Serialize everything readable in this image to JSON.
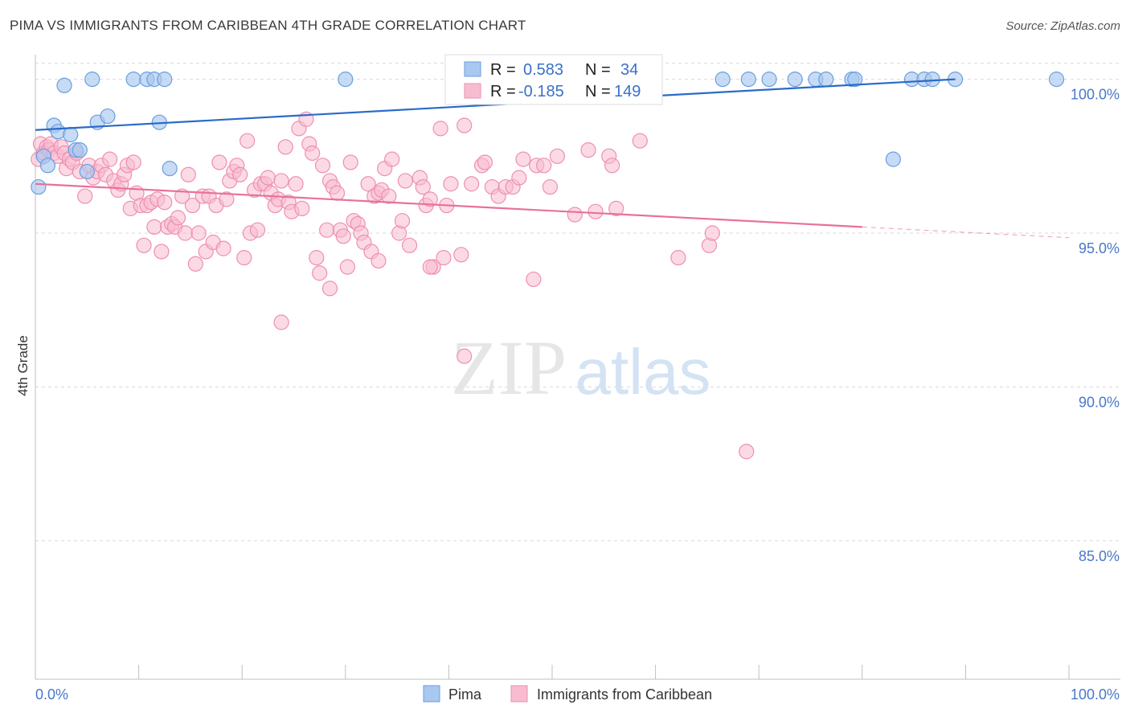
{
  "title": "PIMA VS IMMIGRANTS FROM CARIBBEAN 4TH GRADE CORRELATION CHART",
  "source": "Source: ZipAtlas.com",
  "watermark": {
    "zip": "ZIP",
    "atlas": "atlas"
  },
  "colors": {
    "pima_fill": "#a9c8f0",
    "pima_stroke": "#6a9ee0",
    "pima_line": "#2a6bc8",
    "carib_fill": "#f7bcd0",
    "carib_stroke": "#ee8fb0",
    "carib_line": "#e8709a",
    "grid": "#d9d9d9",
    "tick_text": "#4a78c8"
  },
  "stats_box": {
    "rows": [
      {
        "r_label": "R =",
        "r_value": "0.583",
        "n_label": "N =",
        "n_value": "34"
      },
      {
        "r_label": "R =",
        "r_value": "-0.185",
        "n_label": "N =",
        "n_value": "149"
      }
    ]
  },
  "chart_data": {
    "type": "scatter",
    "title": "PIMA VS IMMIGRANTS FROM CARIBBEAN 4TH GRADE CORRELATION CHART",
    "xlabel": "",
    "ylabel": "4th Grade",
    "xlim": [
      0,
      100
    ],
    "ylim": [
      80.5,
      100.8
    ],
    "x_tick_labels": [
      "0.0%",
      "100.0%"
    ],
    "y_ticks": [
      85,
      90,
      95,
      100
    ],
    "y_tick_labels": [
      "85.0%",
      "90.0%",
      "95.0%",
      "100.0%"
    ],
    "grid": "horizontal dashed",
    "legend_position": "bottom-center",
    "series": [
      {
        "name": "Pima",
        "trend": {
          "x": [
            0,
            89
          ],
          "y": [
            98.35,
            100.0
          ]
        },
        "points": [
          [
            0.3,
            96.5
          ],
          [
            0.8,
            97.5
          ],
          [
            1.2,
            97.2
          ],
          [
            1.8,
            98.5
          ],
          [
            2.2,
            98.3
          ],
          [
            2.8,
            99.8
          ],
          [
            3.4,
            98.2
          ],
          [
            3.9,
            97.7
          ],
          [
            4.3,
            97.7
          ],
          [
            5.0,
            97.0
          ],
          [
            5.5,
            100.0
          ],
          [
            6.0,
            98.6
          ],
          [
            7.0,
            98.8
          ],
          [
            9.5,
            100.0
          ],
          [
            10.8,
            100.0
          ],
          [
            11.5,
            100.0
          ],
          [
            12.0,
            98.6
          ],
          [
            12.5,
            100.0
          ],
          [
            13.0,
            97.1
          ],
          [
            30.0,
            100.0
          ],
          [
            66.5,
            100.0
          ],
          [
            69.0,
            100.0
          ],
          [
            71.0,
            100.0
          ],
          [
            73.5,
            100.0
          ],
          [
            75.5,
            100.0
          ],
          [
            76.5,
            100.0
          ],
          [
            79.0,
            100.0
          ],
          [
            79.3,
            100.0
          ],
          [
            83.0,
            97.4
          ],
          [
            84.8,
            100.0
          ],
          [
            86.0,
            100.0
          ],
          [
            86.8,
            100.0
          ],
          [
            89.0,
            100.0
          ],
          [
            98.8,
            100.0
          ]
        ]
      },
      {
        "name": "Immigrants from Caribbean",
        "trend": {
          "x": [
            0,
            80
          ],
          "y": [
            96.6,
            95.2
          ]
        },
        "trend_dashed": {
          "x": [
            80,
            100
          ],
          "y": [
            95.2,
            94.85
          ]
        },
        "points": [
          [
            0.3,
            97.4
          ],
          [
            0.5,
            97.9
          ],
          [
            0.8,
            97.6
          ],
          [
            1.1,
            97.8
          ],
          [
            1.3,
            97.7
          ],
          [
            1.5,
            97.9
          ],
          [
            1.8,
            97.6
          ],
          [
            2.2,
            97.5
          ],
          [
            2.5,
            97.8
          ],
          [
            2.8,
            97.6
          ],
          [
            3.0,
            97.1
          ],
          [
            3.3,
            97.4
          ],
          [
            3.6,
            97.3
          ],
          [
            4.0,
            97.6
          ],
          [
            4.3,
            97.0
          ],
          [
            4.8,
            96.2
          ],
          [
            5.2,
            97.2
          ],
          [
            5.6,
            96.8
          ],
          [
            6.0,
            97.0
          ],
          [
            6.4,
            97.2
          ],
          [
            6.8,
            96.9
          ],
          [
            7.2,
            97.4
          ],
          [
            7.6,
            96.7
          ],
          [
            8.0,
            96.4
          ],
          [
            8.3,
            96.6
          ],
          [
            8.6,
            96.9
          ],
          [
            8.9,
            97.2
          ],
          [
            9.2,
            95.8
          ],
          [
            9.5,
            97.3
          ],
          [
            9.8,
            96.3
          ],
          [
            10.2,
            95.9
          ],
          [
            10.5,
            94.6
          ],
          [
            10.8,
            95.9
          ],
          [
            11.2,
            96.0
          ],
          [
            11.5,
            95.2
          ],
          [
            11.8,
            96.1
          ],
          [
            12.2,
            94.4
          ],
          [
            12.5,
            96.0
          ],
          [
            12.8,
            95.2
          ],
          [
            13.2,
            95.3
          ],
          [
            13.5,
            95.2
          ],
          [
            13.8,
            95.5
          ],
          [
            14.2,
            96.2
          ],
          [
            14.5,
            95.0
          ],
          [
            14.8,
            96.9
          ],
          [
            15.2,
            95.9
          ],
          [
            15.5,
            94.0
          ],
          [
            15.8,
            95.0
          ],
          [
            16.2,
            96.2
          ],
          [
            16.5,
            94.4
          ],
          [
            16.8,
            96.2
          ],
          [
            17.2,
            94.7
          ],
          [
            17.5,
            95.9
          ],
          [
            17.8,
            97.3
          ],
          [
            18.2,
            94.5
          ],
          [
            18.5,
            96.1
          ],
          [
            18.8,
            96.7
          ],
          [
            19.2,
            97.0
          ],
          [
            19.5,
            97.2
          ],
          [
            19.8,
            96.9
          ],
          [
            20.2,
            94.2
          ],
          [
            20.5,
            98.0
          ],
          [
            20.8,
            95.0
          ],
          [
            21.2,
            96.4
          ],
          [
            21.5,
            95.1
          ],
          [
            21.8,
            96.6
          ],
          [
            22.2,
            96.6
          ],
          [
            22.5,
            96.8
          ],
          [
            22.8,
            96.3
          ],
          [
            23.2,
            95.9
          ],
          [
            23.5,
            96.1
          ],
          [
            23.8,
            96.7
          ],
          [
            24.2,
            97.8
          ],
          [
            24.5,
            96.0
          ],
          [
            24.8,
            95.7
          ],
          [
            25.2,
            96.6
          ],
          [
            25.5,
            98.4
          ],
          [
            25.8,
            95.8
          ],
          [
            26.2,
            98.7
          ],
          [
            26.5,
            97.9
          ],
          [
            26.8,
            97.6
          ],
          [
            27.2,
            94.2
          ],
          [
            27.5,
            93.7
          ],
          [
            27.8,
            97.2
          ],
          [
            28.2,
            95.1
          ],
          [
            28.5,
            96.7
          ],
          [
            28.8,
            96.5
          ],
          [
            29.2,
            96.3
          ],
          [
            29.5,
            95.1
          ],
          [
            29.8,
            94.9
          ],
          [
            30.2,
            93.9
          ],
          [
            30.5,
            97.3
          ],
          [
            30.8,
            95.4
          ],
          [
            31.2,
            95.3
          ],
          [
            31.5,
            95.0
          ],
          [
            31.8,
            94.7
          ],
          [
            32.2,
            96.6
          ],
          [
            32.5,
            94.4
          ],
          [
            32.8,
            96.2
          ],
          [
            33.2,
            96.3
          ],
          [
            33.5,
            96.4
          ],
          [
            33.8,
            97.1
          ],
          [
            34.2,
            96.2
          ],
          [
            34.5,
            97.4
          ],
          [
            35.2,
            95.0
          ],
          [
            35.5,
            95.4
          ],
          [
            35.8,
            96.7
          ],
          [
            36.2,
            94.6
          ],
          [
            37.2,
            96.8
          ],
          [
            37.5,
            96.5
          ],
          [
            37.8,
            95.9
          ],
          [
            38.2,
            96.1
          ],
          [
            38.5,
            93.9
          ],
          [
            39.2,
            98.4
          ],
          [
            39.5,
            94.2
          ],
          [
            39.8,
            95.9
          ],
          [
            40.2,
            96.6
          ],
          [
            41.2,
            94.3
          ],
          [
            41.5,
            98.5
          ],
          [
            42.2,
            96.6
          ],
          [
            43.2,
            97.2
          ],
          [
            43.5,
            97.3
          ],
          [
            44.2,
            96.5
          ],
          [
            44.8,
            96.2
          ],
          [
            45.5,
            96.5
          ],
          [
            46.2,
            96.5
          ],
          [
            46.8,
            96.8
          ],
          [
            47.2,
            97.4
          ],
          [
            48.2,
            93.5
          ],
          [
            48.5,
            97.2
          ],
          [
            49.2,
            97.2
          ],
          [
            49.8,
            96.5
          ],
          [
            50.5,
            97.5
          ],
          [
            52.2,
            95.6
          ],
          [
            53.5,
            97.7
          ],
          [
            54.2,
            95.7
          ],
          [
            55.5,
            97.5
          ],
          [
            55.8,
            97.2
          ],
          [
            56.2,
            95.8
          ],
          [
            58.5,
            98.0
          ],
          [
            62.2,
            94.2
          ],
          [
            65.2,
            94.6
          ],
          [
            65.5,
            95.0
          ],
          [
            68.8,
            87.9
          ],
          [
            41.5,
            91.0
          ],
          [
            23.8,
            92.1
          ],
          [
            33.2,
            94.1
          ],
          [
            38.2,
            93.9
          ],
          [
            28.5,
            93.2
          ]
        ]
      }
    ]
  }
}
